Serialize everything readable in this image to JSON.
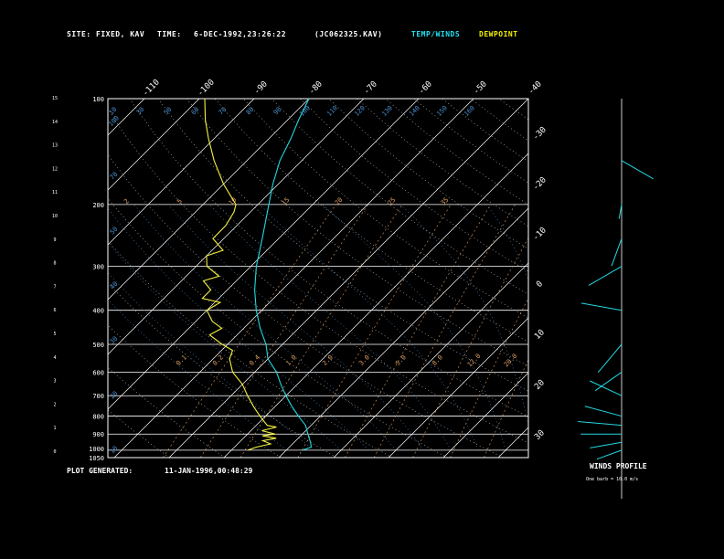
{
  "header": {
    "site_label": "SITE:",
    "site_value": "FIXED, KAV",
    "time_label": "TIME:",
    "time_value": "6-DEC-1992,23:26:22",
    "file_id": "(JC062325.KAV)",
    "legend_temp": "TEMP/WINDS",
    "legend_dew": "DEWPOINT"
  },
  "footer": {
    "generated_label": "PLOT GENERATED:",
    "generated_value": "11-JAN-1996,00:48:29"
  },
  "winds_panel": {
    "title": "WINDS PROFILE",
    "note": "One barb = 10.0 m/s"
  },
  "colors": {
    "background": "#000000",
    "grid": "#ffffff",
    "temperature": "#22d8e0",
    "dewpoint": "#f4f040",
    "mixing_ratio": "#e0a060",
    "moist_adiabat": "#4a90d0",
    "dry_adiabat": "#c8c8c8",
    "legend_temp": "#22e0f0",
    "legend_dew": "#f0f000"
  },
  "chart_data": {
    "type": "line",
    "title": "",
    "ylabel": "",
    "xlabel": "",
    "y_scale": "log-pressure",
    "ylim": [
      1050,
      100
    ],
    "pressure_ticks": [
      100,
      200,
      300,
      400,
      500,
      600,
      700,
      800,
      900,
      1000,
      1050
    ],
    "height_ticks": [
      0,
      1,
      2,
      3,
      4,
      5,
      6,
      7,
      8,
      9,
      10,
      11,
      12,
      13,
      14,
      15
    ],
    "top_temp_ticks": [
      "-110",
      "-100",
      "-90",
      "-80",
      "-70",
      "-60",
      "-50",
      "-40"
    ],
    "right_temp_ticks": [
      "-30",
      "-20",
      "-10",
      "0",
      "10",
      "20",
      "30"
    ],
    "mixing_ratio_labels": [
      "2",
      "5",
      "10",
      "15",
      "20",
      "25",
      "35"
    ],
    "top_adiabat_labels": [
      "10",
      "30",
      "50",
      "60",
      "70",
      "80",
      "90",
      "100",
      "110",
      "120",
      "130",
      "140",
      "150",
      "160"
    ],
    "mid_adiabat_labels": [
      "0.1",
      "0.2",
      "0.4",
      "1.0",
      "2.0",
      "3.0",
      "5.0",
      "8.0",
      "12.0",
      "20.0"
    ],
    "left_theta_labels": [
      "10",
      "20",
      "30",
      "40",
      "50",
      "70",
      "100"
    ],
    "series": [
      {
        "name": "TEMP/WINDS",
        "points": [
          {
            "p": 1000,
            "t": -17
          },
          {
            "p": 980,
            "t": -16
          },
          {
            "p": 950,
            "t": -17
          },
          {
            "p": 925,
            "t": -18
          },
          {
            "p": 900,
            "t": -19
          },
          {
            "p": 850,
            "t": -21
          },
          {
            "p": 800,
            "t": -24
          },
          {
            "p": 750,
            "t": -27
          },
          {
            "p": 700,
            "t": -30
          },
          {
            "p": 650,
            "t": -33
          },
          {
            "p": 600,
            "t": -36
          },
          {
            "p": 550,
            "t": -40
          },
          {
            "p": 500,
            "t": -43
          },
          {
            "p": 450,
            "t": -47
          },
          {
            "p": 400,
            "t": -51
          },
          {
            "p": 350,
            "t": -55
          },
          {
            "p": 300,
            "t": -59
          },
          {
            "p": 250,
            "t": -63
          },
          {
            "p": 200,
            "t": -68
          },
          {
            "p": 175,
            "t": -71
          },
          {
            "p": 150,
            "t": -74
          },
          {
            "p": 130,
            "t": -76
          },
          {
            "p": 115,
            "t": -78
          },
          {
            "p": 100,
            "t": -80
          }
        ]
      },
      {
        "name": "DEWPOINT",
        "points": [
          {
            "p": 1000,
            "t": -27
          },
          {
            "p": 980,
            "t": -26
          },
          {
            "p": 960,
            "t": -24
          },
          {
            "p": 940,
            "t": -26
          },
          {
            "p": 925,
            "t": -24
          },
          {
            "p": 910,
            "t": -27
          },
          {
            "p": 900,
            "t": -25
          },
          {
            "p": 880,
            "t": -28
          },
          {
            "p": 860,
            "t": -26
          },
          {
            "p": 850,
            "t": -28
          },
          {
            "p": 800,
            "t": -31
          },
          {
            "p": 750,
            "t": -34
          },
          {
            "p": 700,
            "t": -37
          },
          {
            "p": 650,
            "t": -40
          },
          {
            "p": 600,
            "t": -44
          },
          {
            "p": 550,
            "t": -47
          },
          {
            "p": 520,
            "t": -48
          },
          {
            "p": 500,
            "t": -51
          },
          {
            "p": 470,
            "t": -55
          },
          {
            "p": 450,
            "t": -54
          },
          {
            "p": 430,
            "t": -57
          },
          {
            "p": 400,
            "t": -60
          },
          {
            "p": 380,
            "t": -59
          },
          {
            "p": 370,
            "t": -63
          },
          {
            "p": 350,
            "t": -63
          },
          {
            "p": 330,
            "t": -66
          },
          {
            "p": 320,
            "t": -64
          },
          {
            "p": 300,
            "t": -68
          },
          {
            "p": 280,
            "t": -70
          },
          {
            "p": 270,
            "t": -68
          },
          {
            "p": 250,
            "t": -72
          },
          {
            "p": 230,
            "t": -72
          },
          {
            "p": 210,
            "t": -73
          },
          {
            "p": 200,
            "t": -74
          },
          {
            "p": 175,
            "t": -80
          },
          {
            "p": 150,
            "t": -86
          },
          {
            "p": 130,
            "t": -91
          },
          {
            "p": 115,
            "t": -95
          },
          {
            "p": 100,
            "t": -99
          }
        ]
      }
    ],
    "winds": [
      {
        "p": 1000,
        "speed_ms": 18,
        "dir_deg": 250
      },
      {
        "p": 950,
        "speed_ms": 22,
        "dir_deg": 260
      },
      {
        "p": 900,
        "speed_ms": 28,
        "dir_deg": 270
      },
      {
        "p": 850,
        "speed_ms": 30,
        "dir_deg": 275
      },
      {
        "p": 800,
        "speed_ms": 26,
        "dir_deg": 285
      },
      {
        "p": 700,
        "speed_ms": 24,
        "dir_deg": 295
      },
      {
        "p": 600,
        "speed_ms": 22,
        "dir_deg": 235
      },
      {
        "p": 500,
        "speed_ms": 25,
        "dir_deg": 220
      },
      {
        "p": 400,
        "speed_ms": 28,
        "dir_deg": 280
      },
      {
        "p": 300,
        "speed_ms": 26,
        "dir_deg": 240
      },
      {
        "p": 250,
        "speed_ms": 20,
        "dir_deg": 200
      },
      {
        "p": 200,
        "speed_ms": 10,
        "dir_deg": 190
      },
      {
        "p": 150,
        "speed_ms": 25,
        "dir_deg": 120
      }
    ]
  }
}
